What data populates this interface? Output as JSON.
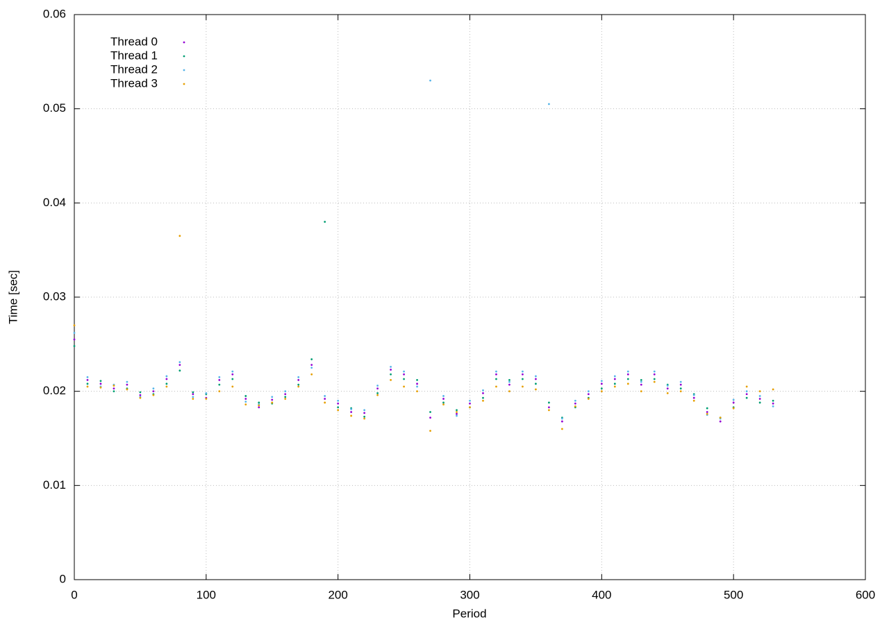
{
  "chart_data": {
    "type": "scatter",
    "xlabel": "Period",
    "ylabel": "Time [sec]",
    "xlim": [
      0,
      600
    ],
    "xticks": [
      0,
      100,
      200,
      300,
      400,
      500,
      600
    ],
    "ylim": [
      0,
      0.06
    ],
    "yticks": [
      0,
      0.01,
      0.02,
      0.03,
      0.04,
      0.05,
      0.06
    ],
    "grid": true,
    "legend": "upper-left",
    "x": [
      0,
      10,
      20,
      30,
      40,
      50,
      60,
      70,
      80,
      90,
      100,
      110,
      120,
      130,
      140,
      150,
      160,
      170,
      180,
      190,
      200,
      210,
      220,
      230,
      240,
      250,
      260,
      270,
      280,
      290,
      300,
      310,
      320,
      330,
      340,
      350,
      360,
      370,
      380,
      390,
      400,
      410,
      420,
      430,
      440,
      450,
      460,
      470,
      480,
      490,
      500,
      510,
      520,
      530
    ],
    "series": [
      {
        "name": "Thread 0",
        "color": "#9400d3",
        "values": [
          0.0255,
          0.0212,
          0.0208,
          0.0203,
          0.0207,
          0.0196,
          0.02,
          0.0213,
          0.0228,
          0.0197,
          0.0193,
          0.0212,
          0.0218,
          0.0192,
          0.0183,
          0.0191,
          0.0197,
          0.0212,
          0.0228,
          0.0192,
          0.0187,
          0.0178,
          0.0177,
          0.0203,
          0.0223,
          0.0218,
          0.0208,
          0.0172,
          0.0192,
          0.0176,
          0.0187,
          0.0198,
          0.0218,
          0.0207,
          0.0218,
          0.0213,
          0.0183,
          0.0168,
          0.0187,
          0.0197,
          0.0208,
          0.0213,
          0.0218,
          0.0207,
          0.0218,
          0.0203,
          0.0207,
          0.0193,
          0.0178,
          0.0168,
          0.0188,
          0.0197,
          0.0192,
          0.0187
        ]
      },
      {
        "name": "Thread 1",
        "color": "#009e73",
        "values": [
          0.0248,
          0.0208,
          0.0211,
          0.02,
          0.0203,
          0.0199,
          0.0197,
          0.0208,
          0.0222,
          0.0199,
          0.0197,
          0.0207,
          0.0213,
          0.0195,
          0.0188,
          0.0187,
          0.0194,
          0.0207,
          0.0234,
          0.038,
          0.0183,
          0.0182,
          0.0173,
          0.0198,
          0.0218,
          0.0213,
          0.0212,
          0.0178,
          0.0188,
          0.018,
          0.0183,
          0.0193,
          0.0213,
          0.0212,
          0.0213,
          0.0208,
          0.0188,
          0.0172,
          0.0183,
          0.0193,
          0.0203,
          0.0208,
          0.0213,
          0.0212,
          0.0213,
          0.0207,
          0.0203,
          0.0197,
          0.0182,
          0.0172,
          0.0183,
          0.0193,
          0.0188,
          0.019
        ]
      },
      {
        "name": "Thread 2",
        "color": "#56b4e9",
        "values": [
          0.0262,
          0.0215,
          0.0205,
          0.0207,
          0.021,
          0.0194,
          0.0203,
          0.0216,
          0.0231,
          0.0194,
          0.0198,
          0.0215,
          0.0221,
          0.0189,
          0.0186,
          0.0194,
          0.02,
          0.0215,
          0.0225,
          0.0195,
          0.019,
          0.0181,
          0.018,
          0.0206,
          0.0226,
          0.0221,
          0.0205,
          0.053,
          0.0195,
          0.0174,
          0.019,
          0.0201,
          0.0221,
          0.021,
          0.0221,
          0.0216,
          0.0505,
          0.0171,
          0.019,
          0.02,
          0.0211,
          0.0216,
          0.0221,
          0.021,
          0.0221,
          0.0206,
          0.021,
          0.0196,
          0.0175,
          0.0171,
          0.0191,
          0.02,
          0.0195,
          0.0184
        ]
      },
      {
        "name": "Thread 3",
        "color": "#e69f00",
        "values": [
          0.027,
          0.0205,
          0.0204,
          0.0206,
          0.0202,
          0.0193,
          0.0196,
          0.0205,
          0.0365,
          0.0192,
          0.0192,
          0.02,
          0.0205,
          0.0186,
          0.0185,
          0.0188,
          0.0192,
          0.0205,
          0.0218,
          0.0188,
          0.018,
          0.0174,
          0.0171,
          0.0196,
          0.0212,
          0.0205,
          0.02,
          0.0158,
          0.0186,
          0.0178,
          0.0183,
          0.019,
          0.0205,
          0.02,
          0.0205,
          0.0202,
          0.018,
          0.016,
          0.0184,
          0.0192,
          0.02,
          0.0205,
          0.0208,
          0.02,
          0.021,
          0.0198,
          0.02,
          0.019,
          0.0176,
          0.0172,
          0.0182,
          0.0205,
          0.02,
          0.0202
        ]
      }
    ]
  }
}
